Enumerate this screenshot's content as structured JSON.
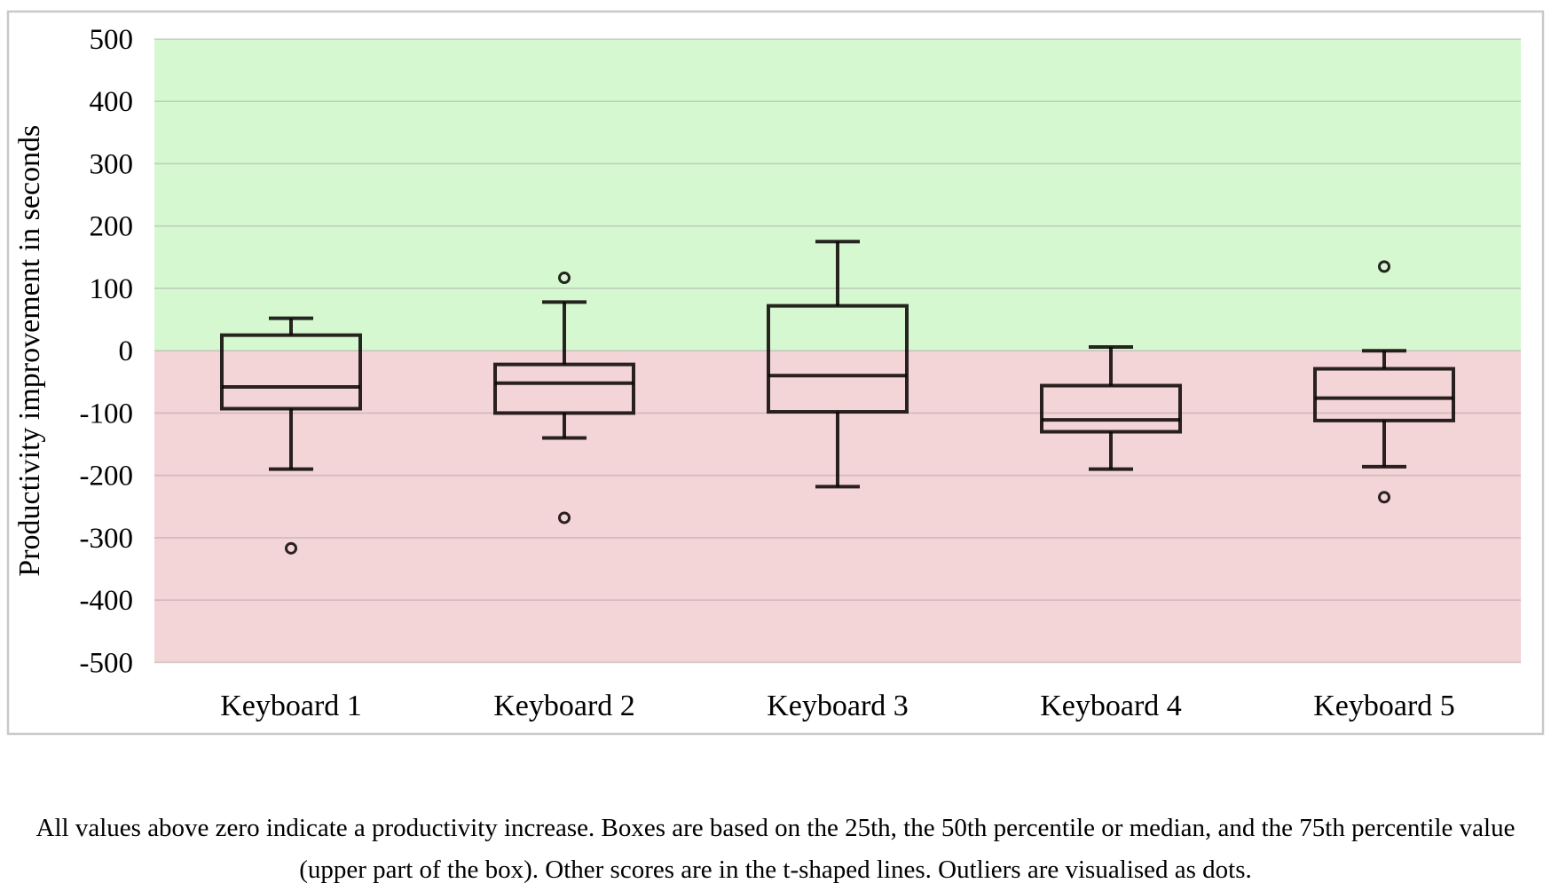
{
  "figure": {
    "caption_line1": "All values above zero indicate a productivity increase. Boxes are based on the 25th, the 50th percentile or median, and the 75th percentile value",
    "caption_line2": "(upper part of the box). Other scores are in the t-shaped lines. Outliers are visualised as dots."
  },
  "chart_data": {
    "type": "boxplot",
    "title": "",
    "xlabel": "",
    "ylabel": "Productivity improvement in seconds",
    "ylim": [
      -500,
      500
    ],
    "ytick_step": 100,
    "yticks": [
      500,
      400,
      300,
      200,
      100,
      0,
      -100,
      -200,
      -300,
      -400,
      -500
    ],
    "grid": "horizontal",
    "legend": "none",
    "categories": [
      "Keyboard 1",
      "Keyboard 2",
      "Keyboard 3",
      "Keyboard 4",
      "Keyboard 5"
    ],
    "series": [
      {
        "name": "Keyboard 1",
        "whisker_low": -190,
        "q1": -93,
        "median": -58,
        "q3": 25,
        "whisker_high": 52,
        "outliers": [
          -317
        ]
      },
      {
        "name": "Keyboard 2",
        "whisker_low": -140,
        "q1": -100,
        "median": -52,
        "q3": -22,
        "whisker_high": 78,
        "outliers": [
          117,
          -268
        ]
      },
      {
        "name": "Keyboard 3",
        "whisker_low": -218,
        "q1": -98,
        "median": -40,
        "q3": 72,
        "whisker_high": 175,
        "outliers": []
      },
      {
        "name": "Keyboard 4",
        "whisker_low": -190,
        "q1": -130,
        "median": -111,
        "q3": -56,
        "whisker_high": 6,
        "outliers": []
      },
      {
        "name": "Keyboard 5",
        "whisker_low": -186,
        "q1": -112,
        "median": -76,
        "q3": -29,
        "whisker_high": 0,
        "outliers": [
          135,
          -235
        ]
      }
    ],
    "colors": {
      "positive_region": "#d5f8d0",
      "negative_region": "#f3d4d7",
      "box_stroke": "#0a0505",
      "box_stroke_opacity": 0.87,
      "gridline": "#9e9696",
      "panel_border": "#c9c9c9",
      "text": "#000000"
    }
  }
}
